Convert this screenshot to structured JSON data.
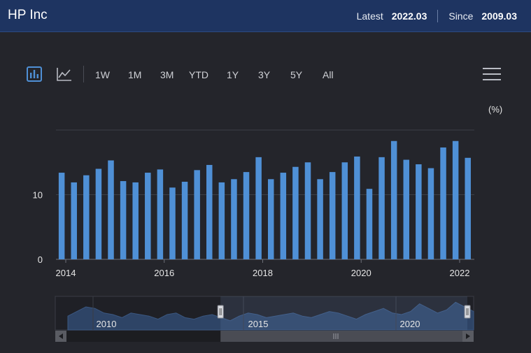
{
  "header": {
    "title": "HP Inc",
    "latest_label": "Latest",
    "latest_value": "2022.03",
    "since_label": "Since",
    "since_value": "2009.03"
  },
  "toolbar": {
    "icons": [
      "bar-chart-icon",
      "line-chart-icon",
      "menu-icon"
    ],
    "ranges": [
      "1W",
      "1M",
      "3M",
      "YTD",
      "1Y",
      "3Y",
      "5Y",
      "All"
    ]
  },
  "colors": {
    "bar": "#4f90d6",
    "header": "#1e3461",
    "background": "#24252b"
  },
  "chart_data": {
    "type": "bar",
    "ylabel": "(%)",
    "ylim": [
      0,
      20
    ],
    "yticks": [
      0,
      10
    ],
    "xtick_labels": [
      "2014",
      "2016",
      "2018",
      "2020",
      "2022"
    ],
    "series": [
      {
        "x": [
          "2013.12",
          "2014.03",
          "2014.06",
          "2014.09",
          "2014.12",
          "2015.03",
          "2015.06",
          "2015.09",
          "2015.12",
          "2016.03",
          "2016.06",
          "2016.09",
          "2016.12",
          "2017.03",
          "2017.06",
          "2017.09",
          "2017.12",
          "2018.03",
          "2018.06",
          "2018.09",
          "2018.12",
          "2019.03",
          "2019.06",
          "2019.09",
          "2019.12",
          "2020.03",
          "2020.06",
          "2020.09",
          "2020.12",
          "2021.03",
          "2021.06",
          "2021.09",
          "2021.12",
          "2022.03"
        ],
        "values": [
          13.4,
          11.9,
          13.0,
          14.0,
          15.3,
          12.1,
          11.9,
          13.4,
          13.9,
          11.1,
          12.0,
          13.8,
          14.6,
          11.9,
          12.4,
          13.5,
          15.8,
          12.4,
          13.4,
          14.3,
          15.0,
          12.4,
          13.5,
          15.0,
          15.9,
          10.9,
          15.8,
          18.3,
          15.4,
          14.7,
          14.1,
          17.3,
          18.3,
          15.7
        ]
      }
    ]
  },
  "navigator": {
    "labels": [
      "2010",
      "2015",
      "2020"
    ],
    "selection": [
      0.395,
      0.985
    ]
  }
}
